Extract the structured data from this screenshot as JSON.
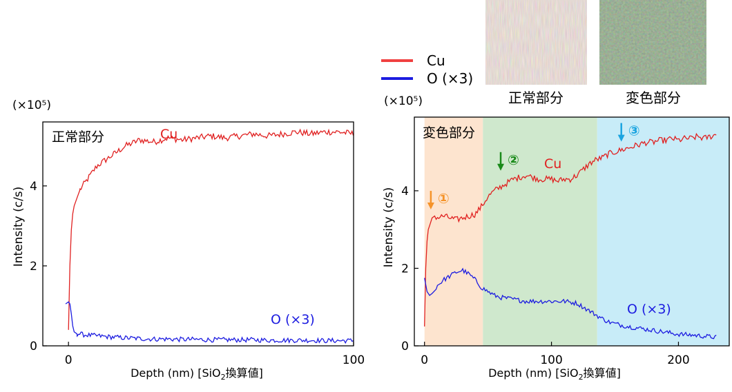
{
  "legend": {
    "entries": [
      {
        "label": "Cu",
        "color": "#f04040"
      },
      {
        "label": "O (×3)",
        "color": "#1c1ce0"
      }
    ]
  },
  "photos": [
    {
      "label": "正常部分"
    },
    {
      "label": "変色部分"
    }
  ],
  "colors": {
    "cu": "#e02020",
    "o": "#1c1ce0",
    "zone1": "#fde4cf",
    "zone2": "#cfe8cd",
    "zone3": "#c8ecf8",
    "arrow1": "#f5932a",
    "arrow2": "#1a8a1a",
    "arrow3": "#1aa4e0"
  },
  "chart_data": [
    {
      "type": "line",
      "panel_label": "正常部分",
      "multiplier_label": "(×10⁵)",
      "xlabel_prefix": "Depth (nm) [SiO",
      "xlabel_sub": "2",
      "xlabel_suffix": "換算値]",
      "ylabel": "Intensity (c/s)",
      "xlim": [
        -9,
        100
      ],
      "ylim": [
        0,
        5.6
      ],
      "xticks": [
        {
          "v": 0,
          "label": "0"
        },
        {
          "v": 100,
          "label": "100"
        }
      ],
      "yticks": [
        {
          "v": 0,
          "label": "0"
        },
        {
          "v": 2,
          "label": "2"
        },
        {
          "v": 4,
          "label": "4"
        }
      ],
      "series": [
        {
          "name": "Cu",
          "key": "cu",
          "x": [
            0,
            0.5,
            1,
            1.5,
            2,
            3,
            4,
            5,
            6,
            8,
            10,
            12,
            15,
            18,
            20,
            25,
            30,
            35,
            40,
            45,
            50,
            55,
            60,
            65,
            70,
            75,
            80,
            85,
            90,
            95,
            100
          ],
          "y": [
            0.4,
            2.0,
            2.9,
            3.3,
            3.5,
            3.7,
            3.9,
            4.0,
            4.1,
            4.3,
            4.5,
            4.6,
            4.75,
            4.9,
            5.0,
            5.15,
            5.1,
            5.2,
            5.15,
            5.2,
            5.25,
            5.2,
            5.25,
            5.3,
            5.25,
            5.3,
            5.35,
            5.3,
            5.35,
            5.35,
            5.3
          ]
        },
        {
          "name": "O (×3)",
          "key": "o",
          "x": [
            -1,
            0,
            0.5,
            1,
            1.5,
            2,
            3,
            4,
            5,
            8,
            10,
            15,
            20,
            25,
            30,
            35,
            40,
            45,
            50,
            55,
            60,
            65,
            70,
            75,
            80,
            85,
            90,
            95,
            100
          ],
          "y": [
            1.05,
            1.1,
            1.05,
            0.8,
            0.5,
            0.35,
            0.3,
            0.3,
            0.28,
            0.26,
            0.25,
            0.22,
            0.2,
            0.18,
            0.17,
            0.17,
            0.16,
            0.16,
            0.15,
            0.15,
            0.15,
            0.15,
            0.14,
            0.14,
            0.14,
            0.14,
            0.13,
            0.13,
            0.13
          ]
        }
      ],
      "annotations": [
        {
          "text": "Cu",
          "key": "cu"
        },
        {
          "text": "O (×3)",
          "key": "o"
        }
      ]
    },
    {
      "type": "line",
      "panel_label": "変色部分",
      "multiplier_label": "(×10⁵)",
      "xlabel_prefix": "Depth (nm) [SiO",
      "xlabel_sub": "2",
      "xlabel_suffix": "換算値]",
      "ylabel": "Intensity (c/s)",
      "xlim": [
        -8,
        240
      ],
      "ylim": [
        0,
        5.9
      ],
      "xticks": [
        {
          "v": 0,
          "label": "0"
        },
        {
          "v": 100,
          "label": "100"
        },
        {
          "v": 200,
          "label": "200"
        }
      ],
      "yticks": [
        {
          "v": 0,
          "label": "0"
        },
        {
          "v": 2,
          "label": "2"
        },
        {
          "v": 4,
          "label": "4"
        }
      ],
      "regions": [
        {
          "x0": 0,
          "x1": 46,
          "key": "zone1"
        },
        {
          "x0": 46,
          "x1": 136,
          "key": "zone2"
        },
        {
          "x0": 136,
          "x1": 240,
          "key": "zone3"
        }
      ],
      "series": [
        {
          "name": "Cu",
          "key": "cu",
          "x": [
            0,
            1,
            2,
            3,
            4,
            6,
            8,
            10,
            15,
            20,
            25,
            30,
            35,
            40,
            45,
            50,
            55,
            60,
            65,
            70,
            75,
            80,
            85,
            90,
            95,
            100,
            105,
            110,
            115,
            120,
            125,
            130,
            135,
            140,
            145,
            150,
            155,
            160,
            165,
            170,
            175,
            180,
            185,
            190,
            195,
            200,
            205,
            210,
            215,
            220,
            225,
            230
          ],
          "y": [
            0.5,
            2.0,
            2.7,
            3.0,
            3.1,
            3.3,
            3.35,
            3.3,
            3.35,
            3.3,
            3.25,
            3.3,
            3.35,
            3.4,
            3.6,
            3.85,
            4.0,
            4.1,
            4.2,
            4.3,
            4.35,
            4.4,
            4.35,
            4.3,
            4.3,
            4.3,
            4.25,
            4.3,
            4.3,
            4.4,
            4.55,
            4.7,
            4.8,
            4.85,
            4.95,
            5.0,
            5.05,
            5.1,
            5.15,
            5.2,
            5.25,
            5.25,
            5.3,
            5.3,
            5.35,
            5.3,
            5.35,
            5.35,
            5.4,
            5.35,
            5.4,
            5.45
          ]
        },
        {
          "name": "O (×3)",
          "key": "o",
          "x": [
            0,
            2,
            4,
            6,
            10,
            15,
            20,
            25,
            30,
            35,
            40,
            45,
            50,
            55,
            60,
            70,
            80,
            90,
            100,
            110,
            120,
            125,
            130,
            135,
            140,
            145,
            150,
            160,
            170,
            180,
            190,
            200,
            210,
            220,
            230
          ],
          "y": [
            1.75,
            1.4,
            1.3,
            1.35,
            1.55,
            1.7,
            1.8,
            1.9,
            1.95,
            1.85,
            1.7,
            1.5,
            1.4,
            1.3,
            1.25,
            1.2,
            1.15,
            1.15,
            1.15,
            1.15,
            1.1,
            1.0,
            0.9,
            0.8,
            0.7,
            0.62,
            0.57,
            0.5,
            0.45,
            0.4,
            0.35,
            0.3,
            0.28,
            0.25,
            0.22
          ]
        }
      ],
      "annotations": [
        {
          "text": "Cu",
          "key": "cu"
        },
        {
          "text": "O (×3)",
          "key": "o"
        }
      ],
      "markers": [
        {
          "label": "①",
          "x": 5,
          "y": 3.5,
          "key": "arrow1"
        },
        {
          "label": "②",
          "x": 60,
          "y": 4.5,
          "key": "arrow2"
        },
        {
          "label": "③",
          "x": 155,
          "y": 5.25,
          "key": "arrow3"
        }
      ]
    }
  ]
}
